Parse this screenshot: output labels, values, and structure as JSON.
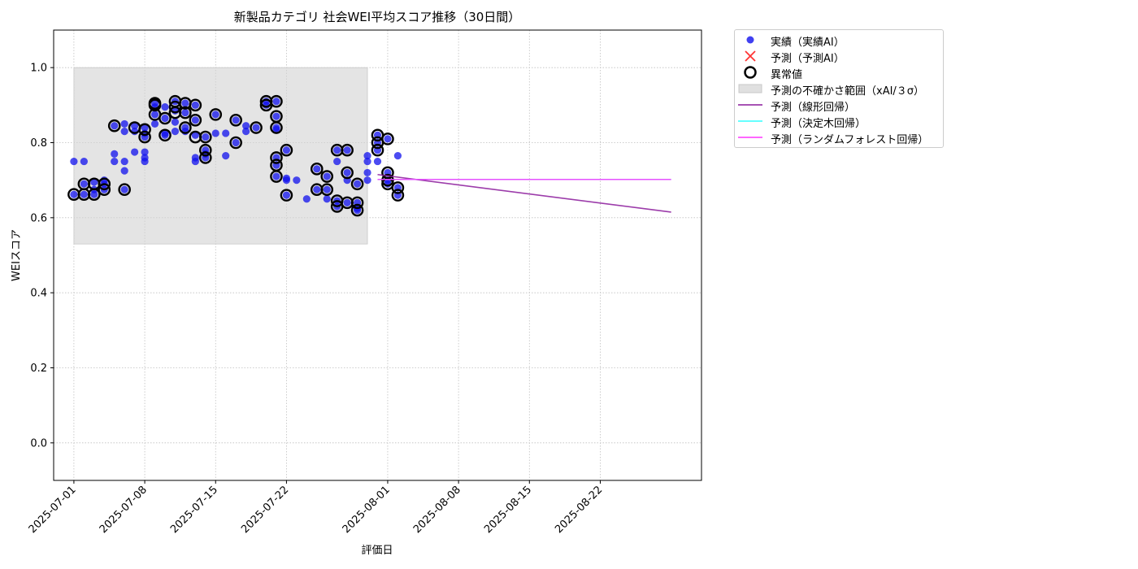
{
  "chart_data": {
    "type": "scatter",
    "title": "新製品カテゴリ 社会WEI平均スコア推移（30日間）",
    "xlabel": "評価日",
    "ylabel": "WEIスコア",
    "xlim": [
      "2025-06-29",
      "2025-09-01"
    ],
    "ylim": [
      -0.1,
      1.1
    ],
    "yticks": [
      "0.0",
      "0.2",
      "0.4",
      "0.6",
      "0.8",
      "1.0"
    ],
    "yticks_values": [
      0.0,
      0.2,
      0.4,
      0.6,
      0.8,
      1.0
    ],
    "xticks": [
      "2025-07-01",
      "2025-07-08",
      "2025-07-15",
      "2025-07-22",
      "2025-08-01",
      "2025-08-08",
      "2025-08-15",
      "2025-08-22"
    ],
    "grid": true,
    "legend_position": "outside-top-right",
    "uncertainty_band": {
      "x_start": "2025-07-01",
      "x_end": "2025-07-30",
      "y_low": 0.53,
      "y_high": 1.0
    },
    "series": [
      {
        "name": "実績（実績AI）",
        "kind": "scatter",
        "color": "#1010ee",
        "points": [
          [
            "2025-07-01",
            0.662
          ],
          [
            "2025-07-01",
            0.75
          ],
          [
            "2025-07-02",
            0.662
          ],
          [
            "2025-07-02",
            0.75
          ],
          [
            "2025-07-02",
            0.69
          ],
          [
            "2025-07-03",
            0.662
          ],
          [
            "2025-07-03",
            0.695
          ],
          [
            "2025-07-03",
            0.675
          ],
          [
            "2025-07-04",
            0.69
          ],
          [
            "2025-07-04",
            0.675
          ],
          [
            "2025-07-04",
            0.7
          ],
          [
            "2025-07-05",
            0.77
          ],
          [
            "2025-07-05",
            0.75
          ],
          [
            "2025-07-05",
            0.845
          ],
          [
            "2025-07-06",
            0.675
          ],
          [
            "2025-07-06",
            0.725
          ],
          [
            "2025-07-06",
            0.75
          ],
          [
            "2025-07-06",
            0.85
          ],
          [
            "2025-07-06",
            0.83
          ],
          [
            "2025-07-07",
            0.775
          ],
          [
            "2025-07-07",
            0.83
          ],
          [
            "2025-07-07",
            0.845
          ],
          [
            "2025-07-08",
            0.76
          ],
          [
            "2025-07-08",
            0.75
          ],
          [
            "2025-07-08",
            0.775
          ],
          [
            "2025-07-08",
            0.84
          ],
          [
            "2025-07-08",
            0.815
          ],
          [
            "2025-07-08",
            0.825
          ],
          [
            "2025-07-09",
            0.905
          ],
          [
            "2025-07-09",
            0.895
          ],
          [
            "2025-07-09",
            0.875
          ],
          [
            "2025-07-09",
            0.85
          ],
          [
            "2025-07-10",
            0.865
          ],
          [
            "2025-07-10",
            0.825
          ],
          [
            "2025-07-10",
            0.82
          ],
          [
            "2025-07-10",
            0.895
          ],
          [
            "2025-07-11",
            0.91
          ],
          [
            "2025-07-11",
            0.885
          ],
          [
            "2025-07-11",
            0.855
          ],
          [
            "2025-07-11",
            0.83
          ],
          [
            "2025-07-12",
            0.905
          ],
          [
            "2025-07-12",
            0.88
          ],
          [
            "2025-07-12",
            0.84
          ],
          [
            "2025-07-12",
            0.83
          ],
          [
            "2025-07-13",
            0.9
          ],
          [
            "2025-07-13",
            0.86
          ],
          [
            "2025-07-13",
            0.82
          ],
          [
            "2025-07-13",
            0.76
          ],
          [
            "2025-07-13",
            0.75
          ],
          [
            "2025-07-14",
            0.815
          ],
          [
            "2025-07-14",
            0.78
          ],
          [
            "2025-07-14",
            0.76
          ],
          [
            "2025-07-14",
            0.77
          ],
          [
            "2025-07-15",
            0.875
          ],
          [
            "2025-07-15",
            0.825
          ],
          [
            "2025-07-16",
            0.825
          ],
          [
            "2025-07-16",
            0.765
          ],
          [
            "2025-07-17",
            0.86
          ],
          [
            "2025-07-17",
            0.8
          ],
          [
            "2025-07-18",
            0.845
          ],
          [
            "2025-07-18",
            0.83
          ],
          [
            "2025-07-19",
            0.84
          ],
          [
            "2025-07-20",
            0.91
          ],
          [
            "2025-07-20",
            0.9
          ],
          [
            "2025-07-21",
            0.91
          ],
          [
            "2025-07-21",
            0.87
          ],
          [
            "2025-07-21",
            0.84
          ],
          [
            "2025-07-21",
            0.76
          ],
          [
            "2025-07-21",
            0.74
          ],
          [
            "2025-07-21",
            0.71
          ],
          [
            "2025-07-21",
            0.835
          ],
          [
            "2025-07-22",
            0.78
          ],
          [
            "2025-07-22",
            0.66
          ],
          [
            "2025-07-22",
            0.705
          ],
          [
            "2025-07-22",
            0.7
          ],
          [
            "2025-07-23",
            0.7
          ],
          [
            "2025-07-24",
            0.65
          ],
          [
            "2025-07-25",
            0.73
          ],
          [
            "2025-07-25",
            0.675
          ],
          [
            "2025-07-26",
            0.71
          ],
          [
            "2025-07-26",
            0.675
          ],
          [
            "2025-07-26",
            0.65
          ],
          [
            "2025-07-27",
            0.645
          ],
          [
            "2025-07-27",
            0.63
          ],
          [
            "2025-07-27",
            0.78
          ],
          [
            "2025-07-27",
            0.75
          ],
          [
            "2025-07-28",
            0.78
          ],
          [
            "2025-07-28",
            0.72
          ],
          [
            "2025-07-28",
            0.7
          ],
          [
            "2025-07-28",
            0.64
          ],
          [
            "2025-07-29",
            0.69
          ],
          [
            "2025-07-29",
            0.64
          ],
          [
            "2025-07-29",
            0.625
          ],
          [
            "2025-07-29",
            0.62
          ],
          [
            "2025-07-30",
            0.765
          ],
          [
            "2025-07-30",
            0.75
          ],
          [
            "2025-07-30",
            0.72
          ],
          [
            "2025-07-30",
            0.7
          ],
          [
            "2025-07-31",
            0.82
          ],
          [
            "2025-07-31",
            0.8
          ],
          [
            "2025-07-31",
            0.78
          ],
          [
            "2025-07-31",
            0.75
          ],
          [
            "2025-08-01",
            0.81
          ],
          [
            "2025-08-01",
            0.72
          ],
          [
            "2025-08-01",
            0.7
          ],
          [
            "2025-08-01",
            0.69
          ],
          [
            "2025-08-02",
            0.68
          ],
          [
            "2025-08-02",
            0.66
          ],
          [
            "2025-08-02",
            0.765
          ]
        ]
      },
      {
        "name": "異常値",
        "kind": "outlier-rings",
        "color": "#000000",
        "points": [
          [
            "2025-07-01",
            0.662
          ],
          [
            "2025-07-02",
            0.662
          ],
          [
            "2025-07-02",
            0.69
          ],
          [
            "2025-07-03",
            0.662
          ],
          [
            "2025-07-03",
            0.69
          ],
          [
            "2025-07-04",
            0.675
          ],
          [
            "2025-07-04",
            0.69
          ],
          [
            "2025-07-05",
            0.845
          ],
          [
            "2025-07-06",
            0.675
          ],
          [
            "2025-07-07",
            0.84
          ],
          [
            "2025-07-08",
            0.815
          ],
          [
            "2025-07-08",
            0.835
          ],
          [
            "2025-07-09",
            0.905
          ],
          [
            "2025-07-09",
            0.9
          ],
          [
            "2025-07-09",
            0.875
          ],
          [
            "2025-07-10",
            0.865
          ],
          [
            "2025-07-10",
            0.82
          ],
          [
            "2025-07-11",
            0.91
          ],
          [
            "2025-07-11",
            0.895
          ],
          [
            "2025-07-11",
            0.88
          ],
          [
            "2025-07-12",
            0.905
          ],
          [
            "2025-07-12",
            0.88
          ],
          [
            "2025-07-12",
            0.84
          ],
          [
            "2025-07-13",
            0.9
          ],
          [
            "2025-07-13",
            0.86
          ],
          [
            "2025-07-13",
            0.815
          ],
          [
            "2025-07-14",
            0.815
          ],
          [
            "2025-07-14",
            0.78
          ],
          [
            "2025-07-14",
            0.76
          ],
          [
            "2025-07-15",
            0.875
          ],
          [
            "2025-07-17",
            0.86
          ],
          [
            "2025-07-17",
            0.8
          ],
          [
            "2025-07-19",
            0.84
          ],
          [
            "2025-07-20",
            0.91
          ],
          [
            "2025-07-20",
            0.9
          ],
          [
            "2025-07-21",
            0.91
          ],
          [
            "2025-07-21",
            0.87
          ],
          [
            "2025-07-21",
            0.84
          ],
          [
            "2025-07-21",
            0.76
          ],
          [
            "2025-07-21",
            0.74
          ],
          [
            "2025-07-21",
            0.71
          ],
          [
            "2025-07-22",
            0.78
          ],
          [
            "2025-07-22",
            0.66
          ],
          [
            "2025-07-25",
            0.73
          ],
          [
            "2025-07-25",
            0.675
          ],
          [
            "2025-07-26",
            0.71
          ],
          [
            "2025-07-26",
            0.675
          ],
          [
            "2025-07-27",
            0.645
          ],
          [
            "2025-07-27",
            0.63
          ],
          [
            "2025-07-27",
            0.78
          ],
          [
            "2025-07-28",
            0.78
          ],
          [
            "2025-07-28",
            0.72
          ],
          [
            "2025-07-28",
            0.64
          ],
          [
            "2025-07-29",
            0.69
          ],
          [
            "2025-07-29",
            0.64
          ],
          [
            "2025-07-29",
            0.62
          ],
          [
            "2025-07-31",
            0.82
          ],
          [
            "2025-07-31",
            0.8
          ],
          [
            "2025-07-31",
            0.78
          ],
          [
            "2025-08-01",
            0.81
          ],
          [
            "2025-08-01",
            0.72
          ],
          [
            "2025-08-01",
            0.7
          ],
          [
            "2025-08-01",
            0.69
          ],
          [
            "2025-08-02",
            0.68
          ],
          [
            "2025-08-02",
            0.66
          ]
        ]
      },
      {
        "name": "予測（予測AI）",
        "kind": "scatter-x",
        "color": "#ff3333",
        "points": []
      },
      {
        "name": "予測（線形回帰）",
        "kind": "line",
        "color": "#8b1a9b",
        "points": [
          [
            "2025-07-31",
            0.715
          ],
          [
            "2025-08-29",
            0.615
          ]
        ]
      },
      {
        "name": "予測（決定木回帰）",
        "kind": "line",
        "color": "#33ffff",
        "points": [
          [
            "2025-07-31",
            0.702
          ],
          [
            "2025-08-29",
            0.702
          ]
        ]
      },
      {
        "name": "予測（ランダムフォレスト回帰）",
        "kind": "line",
        "color": "#ff33ff",
        "points": [
          [
            "2025-07-31",
            0.702
          ],
          [
            "2025-08-29",
            0.702
          ]
        ]
      }
    ]
  },
  "legend": {
    "actual": "実績（実績AI）",
    "predicted": "予測（予測AI）",
    "anomaly": "異常値",
    "band": "予測の不確かさ範囲（xAI/３σ）",
    "linear": "予測（線形回帰）",
    "tree": "予測（決定木回帰）",
    "forest": "予測（ランダムフォレスト回帰）"
  }
}
